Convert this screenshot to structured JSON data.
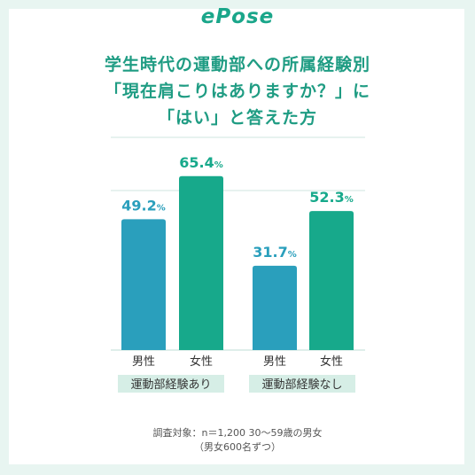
{
  "brand": "ePose",
  "title_lines": [
    "学生時代の運動部への所属経験別",
    "「現在肩こりはありますか？」に",
    "「はい」と答えた方"
  ],
  "note_lines": [
    "調査対象：n＝1,200  30〜59歳の男女",
    "（男女600名ずつ）"
  ],
  "unit": "%",
  "colors": {
    "male": "#2a9fbc",
    "female": "#17a98b",
    "accent": "#1f9c83"
  },
  "chart_data": {
    "type": "bar",
    "groups": [
      "運動部経験あり",
      "運動部経験なし"
    ],
    "bar_labels": [
      "男性",
      "女性"
    ],
    "series": [
      {
        "values": [
          49.2,
          31.7
        ]
      },
      {
        "values": [
          65.4,
          52.3
        ]
      }
    ],
    "value_labels": [
      [
        "49.2",
        "65.4"
      ],
      [
        "31.7",
        "52.3"
      ]
    ],
    "ylim": [
      0,
      80
    ],
    "grid": true
  }
}
